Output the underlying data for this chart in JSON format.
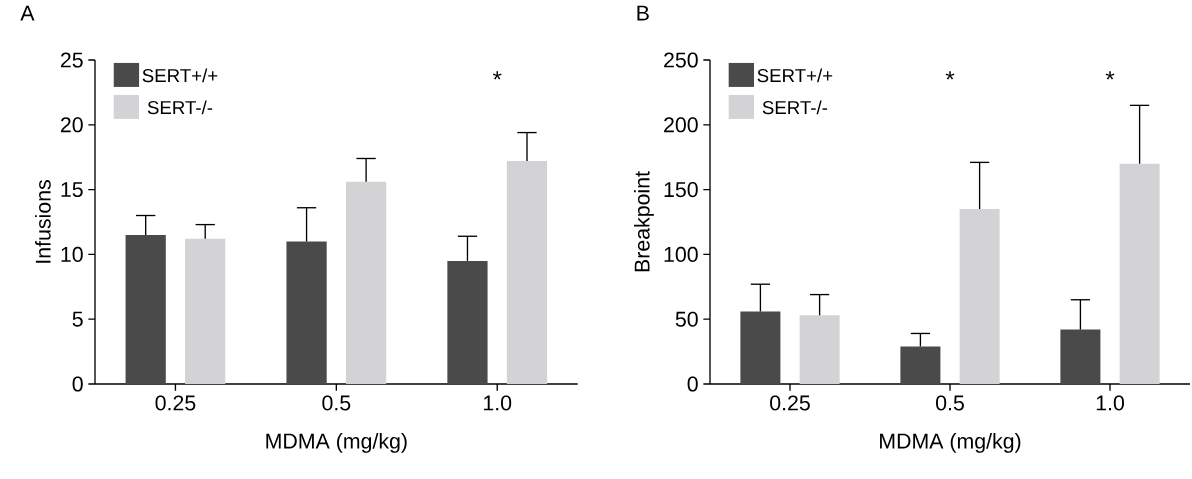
{
  "chart_data": [
    {
      "type": "bar",
      "title": "A",
      "xlabel": "MDMA (mg/kg)",
      "ylabel": "Infusions",
      "categories": [
        "0.25",
        "0.5",
        "1.0"
      ],
      "series": [
        {
          "name": "SERT+/+",
          "color": "#4a4a4a",
          "values": [
            11.5,
            11.0,
            9.5
          ],
          "errors": [
            [
              11.5,
              13.0
            ],
            [
              11.0,
              13.6
            ],
            [
              9.5,
              11.4
            ]
          ]
        },
        {
          "name": "SERT-/-",
          "color": "#d3d3d5",
          "values": [
            11.2,
            15.6,
            17.2
          ],
          "errors": [
            [
              11.2,
              12.3
            ],
            [
              15.6,
              17.4
            ],
            [
              17.2,
              19.4
            ]
          ]
        }
      ],
      "ylim": [
        0,
        25
      ],
      "yticks": [
        0,
        5,
        10,
        15,
        20,
        25
      ],
      "legend": "top left",
      "annotations": [
        "*"
      ]
    },
    {
      "type": "bar",
      "title": "B",
      "xlabel": "MDMA (mg/kg)",
      "ylabel": "Breakpoint",
      "categories": [
        "0.25",
        "0.5",
        "1.0"
      ],
      "series": [
        {
          "name": "SERT+/+",
          "color": "#4a4a4a",
          "values": [
            56,
            29,
            42
          ],
          "errors": [
            [
              56,
              77
            ],
            [
              29,
              39
            ],
            [
              42,
              65
            ]
          ]
        },
        {
          "name": "SERT-/-",
          "color": "#d3d3d5",
          "values": [
            53,
            135,
            170
          ],
          "errors": [
            [
              53,
              69
            ],
            [
              135,
              171
            ],
            [
              170,
              215
            ]
          ]
        }
      ],
      "ylim": [
        0,
        250
      ],
      "yticks": [
        0,
        50,
        100,
        150,
        200,
        250
      ],
      "legend": "top left",
      "annotations": [
        "*",
        "*"
      ]
    }
  ]
}
